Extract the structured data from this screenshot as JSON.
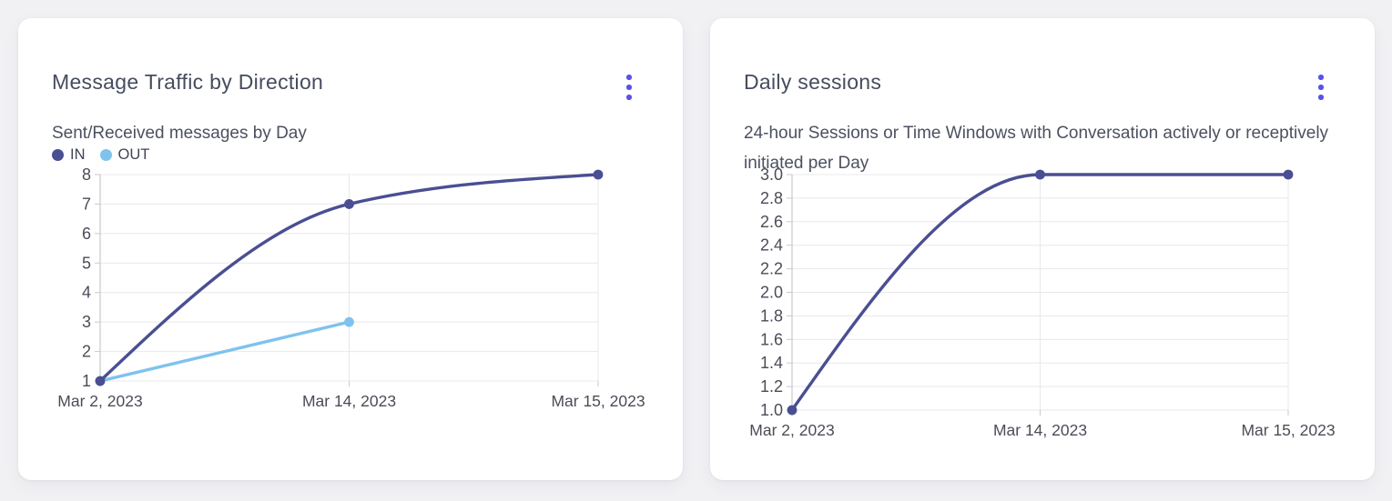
{
  "accent_color": "#5a50ee",
  "cards": [
    {
      "title": "Message Traffic by Direction",
      "subtitle": "Sent/Received messages by Day",
      "chart_data": {
        "type": "line",
        "x": [
          "Mar 2, 2023",
          "Mar 14, 2023",
          "Mar 15, 2023"
        ],
        "series": [
          {
            "name": "IN",
            "color": "#4a4e92",
            "values": [
              1,
              7,
              8
            ]
          },
          {
            "name": "OUT",
            "color": "#7fc2ee",
            "values": [
              1,
              3,
              null
            ]
          }
        ],
        "ylim": [
          1,
          8
        ],
        "ytick_labels": [
          "1",
          "2",
          "3",
          "4",
          "5",
          "6",
          "7",
          "8"
        ],
        "grid": true,
        "curve": "monotone",
        "legend_position": "top-left"
      }
    },
    {
      "title": "Daily sessions",
      "subtitle": "24-hour Sessions or Time Windows with Conversation actively or receptively initiated per Day",
      "chart_data": {
        "type": "line",
        "x": [
          "Mar 2, 2023",
          "Mar 14, 2023",
          "Mar 15, 2023"
        ],
        "series": [
          {
            "color": "#4a4e92",
            "values": [
              1.0,
              3.0,
              3.0
            ]
          }
        ],
        "ylim": [
          1.0,
          3.0
        ],
        "ytick_labels": [
          "1.0",
          "1.2",
          "1.4",
          "1.6",
          "1.8",
          "2.0",
          "2.2",
          "2.4",
          "2.6",
          "2.8",
          "3.0"
        ],
        "grid": true,
        "curve": "monotone",
        "legend_position": "none"
      }
    }
  ]
}
